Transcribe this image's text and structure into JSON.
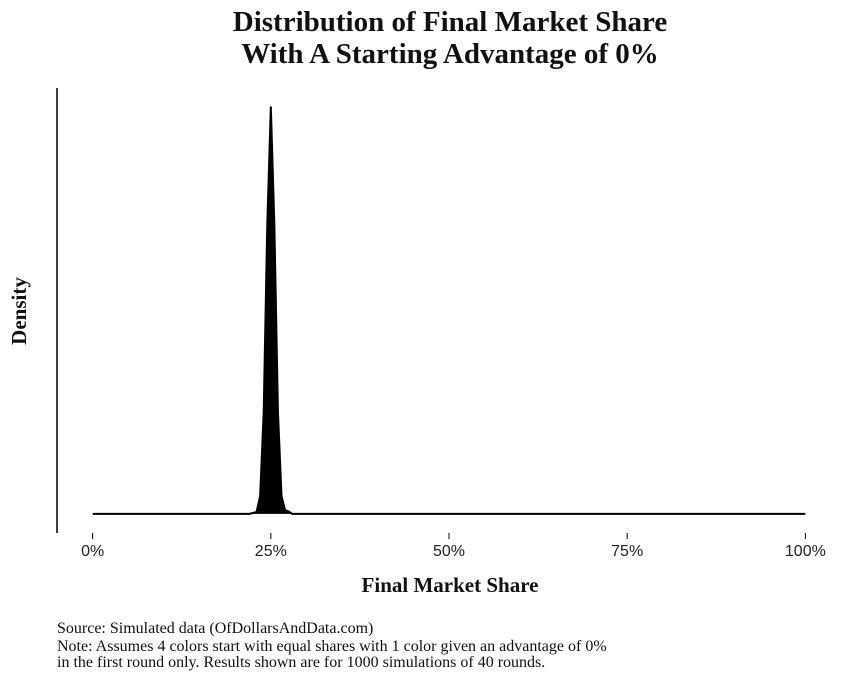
{
  "chart_data": {
    "type": "area",
    "title": [
      "Distribution of Final Market Share",
      "With A Starting Advantage of 0%"
    ],
    "xlabel": "Final Market Share",
    "ylabel": "Density",
    "notes": [
      "Source: Simulated data (OfDollarsAndData.com)",
      "Note: Assumes 4 colors start with equal shares with 1 color given an advantage of 0%",
      "in the first round only. Results shown are for 1000 simulations of 40 rounds."
    ],
    "x": [
      0,
      20,
      22,
      23,
      23.5,
      24,
      24.5,
      25,
      25.5,
      26,
      26.5,
      27,
      27.5,
      28,
      30,
      100
    ],
    "values": [
      0,
      0,
      0,
      0.003,
      0.029,
      0.165,
      0.467,
      0.66,
      0.467,
      0.165,
      0.029,
      0.006,
      0.004,
      0,
      0,
      0
    ],
    "color": "#000000",
    "xlim": [
      -5,
      105
    ],
    "ylim": [
      -0.031,
      0.69
    ],
    "xticks": [
      {
        "value": 0,
        "label": "0%"
      },
      {
        "value": 25,
        "label": "25%"
      },
      {
        "value": 50,
        "label": "50%"
      },
      {
        "value": 75,
        "label": "75%"
      },
      {
        "value": 100,
        "label": "100%"
      }
    ]
  }
}
